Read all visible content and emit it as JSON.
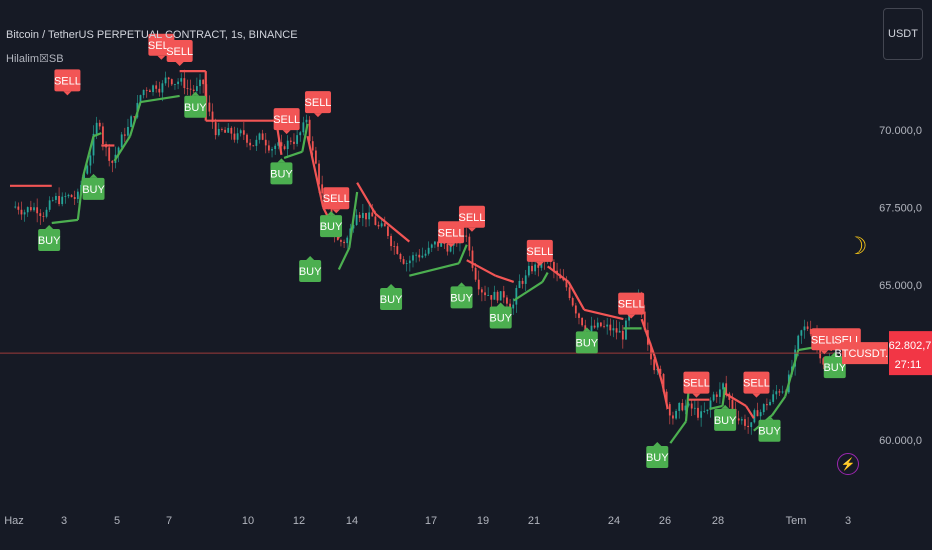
{
  "header": {
    "title": "Bitcoin / TetherUS PERPETUAL CONTRACT, 1s, BINANCE",
    "indicator": "Hilalim☒SB"
  },
  "currency_button": "USDT",
  "price_tags": {
    "symbol": "BTCUSDT.P",
    "last_price": "62.802,7",
    "countdown": "27:11"
  },
  "icons": {
    "moon": "crescent-moon-icon",
    "lightning": "lightning-bolt-icon"
  },
  "colors": {
    "background": "#161a25",
    "buy": "#4caf50",
    "sell": "#f25555",
    "candle_up": "#26a69a",
    "candle_down": "#ef5350",
    "price_line": "#9c3a3a",
    "text": "#b2b5be"
  },
  "chart_data": {
    "type": "line",
    "price_axis": {
      "ticks": [
        {
          "value": 70000,
          "label": "70.000,0"
        },
        {
          "value": 67500,
          "label": "67.500,0"
        },
        {
          "value": 65000,
          "label": "65.000,0"
        },
        {
          "value": 60000,
          "label": "60.000,0"
        }
      ],
      "range": [
        58000,
        73500
      ]
    },
    "time_axis": {
      "ticks": [
        "Haz",
        "3",
        "5",
        "7",
        "10",
        "12",
        "14",
        "17",
        "19",
        "21",
        "24",
        "26",
        "28",
        "Tem",
        "3"
      ]
    },
    "last_price": 62802.7,
    "supertrend": [
      {
        "d": 0,
        "v": 68200,
        "s": "sell"
      },
      {
        "d": 1.6,
        "v": 68200,
        "s": "sell"
      },
      {
        "d": 1.6,
        "v": 67000,
        "s": "buy"
      },
      {
        "d": 2.6,
        "v": 67100,
        "s": "buy"
      },
      {
        "d": 2.8,
        "v": 68500,
        "s": "buy"
      },
      {
        "d": 3.2,
        "v": 69800,
        "s": "buy"
      },
      {
        "d": 3.5,
        "v": 69900,
        "s": "buy"
      },
      {
        "d": 3.5,
        "v": 69500,
        "s": "sell"
      },
      {
        "d": 4.0,
        "v": 69500,
        "s": "sell"
      },
      {
        "d": 4.0,
        "v": 69000,
        "s": "buy"
      },
      {
        "d": 4.6,
        "v": 69800,
        "s": "buy"
      },
      {
        "d": 5.0,
        "v": 70900,
        "s": "buy"
      },
      {
        "d": 6.5,
        "v": 71100,
        "s": "buy"
      },
      {
        "d": 6.5,
        "v": 71900,
        "s": "sell"
      },
      {
        "d": 7.5,
        "v": 71900,
        "s": "sell"
      },
      {
        "d": 7.5,
        "v": 70300,
        "s": "sell"
      },
      {
        "d": 10.2,
        "v": 70300,
        "s": "sell"
      },
      {
        "d": 10.4,
        "v": 69200,
        "s": "sell"
      },
      {
        "d": 10.5,
        "v": 69100,
        "s": "buy"
      },
      {
        "d": 11.2,
        "v": 69300,
        "s": "buy"
      },
      {
        "d": 11.4,
        "v": 70200,
        "s": "buy"
      },
      {
        "d": 11.4,
        "v": 69800,
        "s": "sell"
      },
      {
        "d": 12.0,
        "v": 67500,
        "s": "sell"
      },
      {
        "d": 12.6,
        "v": 66500,
        "s": "sell"
      },
      {
        "d": 12.6,
        "v": 65500,
        "s": "buy"
      },
      {
        "d": 13.0,
        "v": 66200,
        "s": "buy"
      },
      {
        "d": 13.3,
        "v": 68000,
        "s": "buy"
      },
      {
        "d": 13.3,
        "v": 68300,
        "s": "sell"
      },
      {
        "d": 14.0,
        "v": 67300,
        "s": "sell"
      },
      {
        "d": 15.3,
        "v": 66400,
        "s": "sell"
      },
      {
        "d": 15.3,
        "v": 65300,
        "s": "buy"
      },
      {
        "d": 17.2,
        "v": 65700,
        "s": "buy"
      },
      {
        "d": 17.5,
        "v": 66300,
        "s": "buy"
      },
      {
        "d": 17.5,
        "v": 65800,
        "s": "sell"
      },
      {
        "d": 18.6,
        "v": 65300,
        "s": "sell"
      },
      {
        "d": 19.3,
        "v": 65100,
        "s": "sell"
      },
      {
        "d": 19.3,
        "v": 64500,
        "s": "buy"
      },
      {
        "d": 20.4,
        "v": 65100,
        "s": "buy"
      },
      {
        "d": 20.6,
        "v": 65400,
        "s": "buy"
      },
      {
        "d": 20.6,
        "v": 65600,
        "s": "sell"
      },
      {
        "d": 21.4,
        "v": 65100,
        "s": "sell"
      },
      {
        "d": 22.0,
        "v": 64200,
        "s": "sell"
      },
      {
        "d": 23.5,
        "v": 63900,
        "s": "sell"
      },
      {
        "d": 23.5,
        "v": 63600,
        "s": "buy"
      },
      {
        "d": 24.2,
        "v": 63600,
        "s": "buy"
      },
      {
        "d": 24.2,
        "v": 63900,
        "s": "sell"
      },
      {
        "d": 24.7,
        "v": 62700,
        "s": "sell"
      },
      {
        "d": 25.0,
        "v": 61800,
        "s": "sell"
      },
      {
        "d": 25.2,
        "v": 61000,
        "s": "sell"
      },
      {
        "d": 25.3,
        "v": 59900,
        "s": "buy"
      },
      {
        "d": 25.9,
        "v": 60600,
        "s": "buy"
      },
      {
        "d": 26.0,
        "v": 61600,
        "s": "buy"
      },
      {
        "d": 26.0,
        "v": 61300,
        "s": "sell"
      },
      {
        "d": 26.8,
        "v": 61300,
        "s": "sell"
      },
      {
        "d": 26.8,
        "v": 61000,
        "s": "buy"
      },
      {
        "d": 27.3,
        "v": 61100,
        "s": "buy"
      },
      {
        "d": 27.4,
        "v": 61700,
        "s": "buy"
      },
      {
        "d": 27.4,
        "v": 61500,
        "s": "sell"
      },
      {
        "d": 28.2,
        "v": 61100,
        "s": "sell"
      },
      {
        "d": 28.5,
        "v": 60700,
        "s": "sell"
      },
      {
        "d": 28.5,
        "v": 60300,
        "s": "buy"
      },
      {
        "d": 29.2,
        "v": 60800,
        "s": "buy"
      },
      {
        "d": 29.7,
        "v": 61400,
        "s": "buy"
      },
      {
        "d": 30.2,
        "v": 62900,
        "s": "buy"
      },
      {
        "d": 30.9,
        "v": 63000,
        "s": "buy"
      },
      {
        "d": 30.9,
        "v": 63100,
        "s": "sell"
      },
      {
        "d": 31.5,
        "v": 62900,
        "s": "sell"
      }
    ],
    "signals": [
      {
        "label": "BUY",
        "d": 1.5,
        "v": 66450
      },
      {
        "label": "SELL",
        "d": 2.2,
        "v": 71600
      },
      {
        "label": "BUY",
        "d": 3.2,
        "v": 68100
      },
      {
        "label": "SELL",
        "d": 5.8,
        "v": 72750
      },
      {
        "label": "SELL",
        "d": 6.5,
        "v": 72550
      },
      {
        "label": "BUY",
        "d": 7.1,
        "v": 70750
      },
      {
        "label": "SELL",
        "d": 10.6,
        "v": 70350
      },
      {
        "label": "BUY",
        "d": 10.4,
        "v": 68600
      },
      {
        "label": "SELL",
        "d": 11.8,
        "v": 70900
      },
      {
        "label": "SELL",
        "d": 12.5,
        "v": 67800
      },
      {
        "label": "BUY",
        "d": 12.3,
        "v": 66900
      },
      {
        "label": "BUY",
        "d": 11.5,
        "v": 65450
      },
      {
        "label": "BUY",
        "d": 14.6,
        "v": 64550
      },
      {
        "label": "SELL",
        "d": 16.9,
        "v": 66700
      },
      {
        "label": "SELL",
        "d": 17.7,
        "v": 67200
      },
      {
        "label": "BUY",
        "d": 17.3,
        "v": 64600
      },
      {
        "label": "SELL",
        "d": 20.3,
        "v": 66100
      },
      {
        "label": "BUY",
        "d": 18.8,
        "v": 63950
      },
      {
        "label": "SELL",
        "d": 23.8,
        "v": 64400
      },
      {
        "label": "BUY",
        "d": 22.1,
        "v": 63150
      },
      {
        "label": "SELL",
        "d": 26.3,
        "v": 61850
      },
      {
        "label": "SELL",
        "d": 28.6,
        "v": 61850
      },
      {
        "label": "BUY",
        "d": 24.8,
        "v": 59450
      },
      {
        "label": "BUY",
        "d": 27.4,
        "v": 60650
      },
      {
        "label": "BUY",
        "d": 29.1,
        "v": 60300
      },
      {
        "label": "SELL",
        "d": 31.2,
        "v": 63250
      },
      {
        "label": "SELL",
        "d": 32.1,
        "v": 63250
      },
      {
        "label": "BUY",
        "d": 31.6,
        "v": 62350
      }
    ]
  }
}
